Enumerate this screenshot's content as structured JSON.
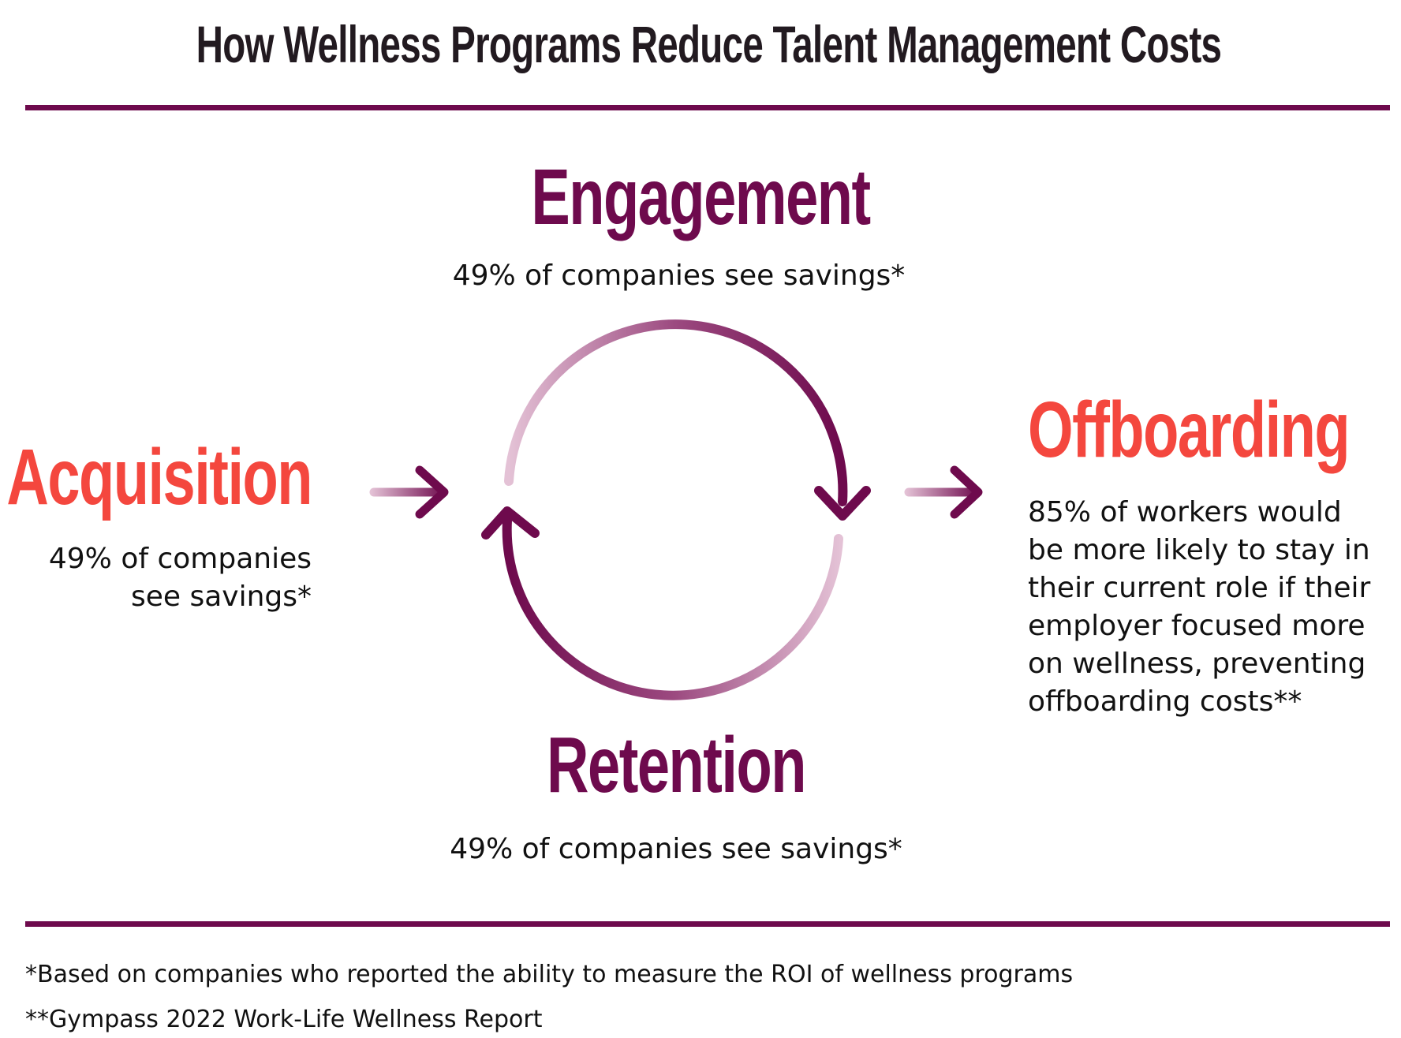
{
  "title": "How Wellness Programs Reduce Talent Management Costs",
  "colors": {
    "purple": "#6e0a4d",
    "coral": "#f4473e",
    "light_pink": "#e4c2d6",
    "text": "#111111"
  },
  "stages": {
    "acquisition": {
      "title": "Acquisition",
      "line1": "49% of companies",
      "line2": "see savings*"
    },
    "engagement": {
      "title": "Engagement",
      "text": "49% of companies see savings*"
    },
    "retention": {
      "title": "Retention",
      "text": "49% of companies see savings*"
    },
    "offboarding": {
      "title": "Offboarding",
      "lines": [
        "85% of workers would",
        "be more likely to stay in",
        "their current role if their",
        "employer focused more",
        "on wellness, preventing",
        "offboarding costs**"
      ]
    }
  },
  "footnotes": [
    "*Based on companies who reported the ability to measure the ROI of wellness programs",
    "**Gympass 2022 Work-Life Wellness Report"
  ]
}
